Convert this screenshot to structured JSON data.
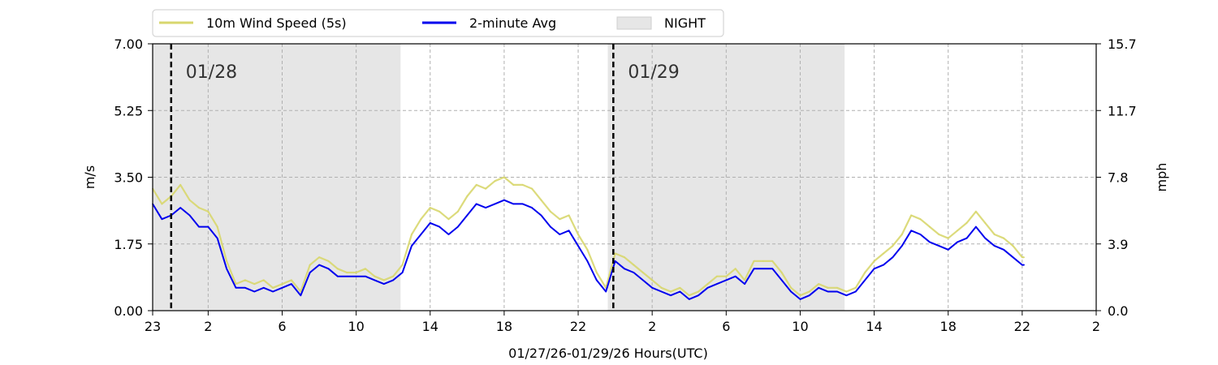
{
  "chart_data": {
    "type": "line",
    "xlabel": "01/27/26-01/29/26  Hours(UTC)",
    "ylabel_left": "m/s",
    "ylabel_right": "mph",
    "x_range_hours": [
      23,
      74
    ],
    "ylim": [
      0,
      7.0
    ],
    "x_ticks": [
      {
        "hour": 23,
        "label": "23"
      },
      {
        "hour": 26,
        "label": "2"
      },
      {
        "hour": 30,
        "label": "6"
      },
      {
        "hour": 34,
        "label": "10"
      },
      {
        "hour": 38,
        "label": "14"
      },
      {
        "hour": 42,
        "label": "18"
      },
      {
        "hour": 46,
        "label": "22"
      },
      {
        "hour": 50,
        "label": "2"
      },
      {
        "hour": 54,
        "label": "6"
      },
      {
        "hour": 58,
        "label": "10"
      },
      {
        "hour": 62,
        "label": "14"
      },
      {
        "hour": 66,
        "label": "18"
      },
      {
        "hour": 70,
        "label": "22"
      },
      {
        "hour": 74,
        "label": "2"
      }
    ],
    "y_ticks_left": [
      "0.00",
      "1.75",
      "3.50",
      "5.25",
      "7.00"
    ],
    "y_ticks_right": [
      "0.0",
      "3.9",
      "7.8",
      "11.7",
      "15.7"
    ],
    "grid": true,
    "legend_position": "top-left, above plot",
    "night_periods": [
      [
        23.0,
        36.4
      ],
      [
        47.6,
        60.4
      ]
    ],
    "date_markers": [
      {
        "hour": 24.0,
        "label": "01/28"
      },
      {
        "hour": 47.9,
        "label": "01/29"
      }
    ],
    "series": [
      {
        "name": "10m Wind Speed (5s)",
        "color": "#d8d76e",
        "x": [
          23.0,
          23.5,
          24.0,
          24.5,
          25.0,
          25.5,
          26.0,
          26.5,
          27.0,
          27.5,
          28.0,
          28.5,
          29.0,
          29.5,
          30.0,
          30.5,
          31.0,
          31.5,
          32.0,
          32.5,
          33.0,
          33.5,
          34.0,
          34.5,
          35.0,
          35.5,
          36.0,
          36.5,
          37.0,
          37.5,
          38.0,
          38.5,
          39.0,
          39.5,
          40.0,
          40.5,
          41.0,
          41.5,
          42.0,
          42.5,
          43.0,
          43.5,
          44.0,
          44.5,
          45.0,
          45.5,
          46.0,
          46.5,
          47.0,
          47.5,
          48.0,
          48.5,
          49.0,
          49.5,
          50.0,
          50.5,
          51.0,
          51.5,
          52.0,
          52.5,
          53.0,
          53.5,
          54.0,
          54.5,
          55.0,
          55.5,
          56.0,
          56.5,
          57.0,
          57.5,
          58.0,
          58.5,
          59.0,
          59.5,
          60.0,
          60.5,
          61.0,
          61.5,
          62.0,
          62.5,
          63.0,
          63.5,
          64.0,
          64.5,
          65.0,
          65.5,
          66.0,
          66.5,
          67.0,
          67.5,
          68.0,
          68.5,
          69.0,
          69.5,
          70.0,
          70.1
        ],
        "values": [
          3.2,
          2.8,
          3.0,
          3.3,
          2.9,
          2.7,
          2.6,
          2.2,
          1.3,
          0.7,
          0.8,
          0.7,
          0.8,
          0.6,
          0.7,
          0.8,
          0.5,
          1.2,
          1.4,
          1.3,
          1.1,
          1.0,
          1.0,
          1.1,
          0.9,
          0.8,
          0.9,
          1.2,
          2.0,
          2.4,
          2.7,
          2.6,
          2.4,
          2.6,
          3.0,
          3.3,
          3.2,
          3.4,
          3.5,
          3.3,
          3.3,
          3.2,
          2.9,
          2.6,
          2.4,
          2.5,
          2.0,
          1.6,
          1.0,
          0.6,
          1.5,
          1.4,
          1.2,
          1.0,
          0.8,
          0.6,
          0.5,
          0.6,
          0.4,
          0.5,
          0.7,
          0.9,
          0.9,
          1.1,
          0.8,
          1.3,
          1.3,
          1.3,
          1.0,
          0.6,
          0.4,
          0.5,
          0.7,
          0.6,
          0.6,
          0.5,
          0.6,
          1.0,
          1.3,
          1.5,
          1.7,
          2.0,
          2.5,
          2.4,
          2.2,
          2.0,
          1.9,
          2.1,
          2.3,
          2.6,
          2.3,
          2.0,
          1.9,
          1.7,
          1.4,
          1.4
        ]
      },
      {
        "name": "2-minute Avg",
        "color": "#0000ee",
        "x": [
          23.0,
          23.5,
          24.0,
          24.5,
          25.0,
          25.5,
          26.0,
          26.5,
          27.0,
          27.5,
          28.0,
          28.5,
          29.0,
          29.5,
          30.0,
          30.5,
          31.0,
          31.5,
          32.0,
          32.5,
          33.0,
          33.5,
          34.0,
          34.5,
          35.0,
          35.5,
          36.0,
          36.5,
          37.0,
          37.5,
          38.0,
          38.5,
          39.0,
          39.5,
          40.0,
          40.5,
          41.0,
          41.5,
          42.0,
          42.5,
          43.0,
          43.5,
          44.0,
          44.5,
          45.0,
          45.5,
          46.0,
          46.5,
          47.0,
          47.5,
          48.0,
          48.5,
          49.0,
          49.5,
          50.0,
          50.5,
          51.0,
          51.5,
          52.0,
          52.5,
          53.0,
          53.5,
          54.0,
          54.5,
          55.0,
          55.5,
          56.0,
          56.5,
          57.0,
          57.5,
          58.0,
          58.5,
          59.0,
          59.5,
          60.0,
          60.5,
          61.0,
          61.5,
          62.0,
          62.5,
          63.0,
          63.5,
          64.0,
          64.5,
          65.0,
          65.5,
          66.0,
          66.5,
          67.0,
          67.5,
          68.0,
          68.5,
          69.0,
          69.5,
          70.0,
          70.1
        ],
        "values": [
          2.8,
          2.4,
          2.5,
          2.7,
          2.5,
          2.2,
          2.2,
          1.9,
          1.1,
          0.6,
          0.6,
          0.5,
          0.6,
          0.5,
          0.6,
          0.7,
          0.4,
          1.0,
          1.2,
          1.1,
          0.9,
          0.9,
          0.9,
          0.9,
          0.8,
          0.7,
          0.8,
          1.0,
          1.7,
          2.0,
          2.3,
          2.2,
          2.0,
          2.2,
          2.5,
          2.8,
          2.7,
          2.8,
          2.9,
          2.8,
          2.8,
          2.7,
          2.5,
          2.2,
          2.0,
          2.1,
          1.7,
          1.3,
          0.8,
          0.5,
          1.3,
          1.1,
          1.0,
          0.8,
          0.6,
          0.5,
          0.4,
          0.5,
          0.3,
          0.4,
          0.6,
          0.7,
          0.8,
          0.9,
          0.7,
          1.1,
          1.1,
          1.1,
          0.8,
          0.5,
          0.3,
          0.4,
          0.6,
          0.5,
          0.5,
          0.4,
          0.5,
          0.8,
          1.1,
          1.2,
          1.4,
          1.7,
          2.1,
          2.0,
          1.8,
          1.7,
          1.6,
          1.8,
          1.9,
          2.2,
          1.9,
          1.7,
          1.6,
          1.4,
          1.2,
          1.2
        ]
      }
    ],
    "legend_entries": [
      {
        "label": "10m Wind Speed (5s)",
        "kind": "line",
        "color": "#d8d76e"
      },
      {
        "label": "2-minute Avg",
        "kind": "line",
        "color": "#0000ee"
      },
      {
        "label": "NIGHT",
        "kind": "patch",
        "color": "#e6e6e6"
      }
    ]
  }
}
